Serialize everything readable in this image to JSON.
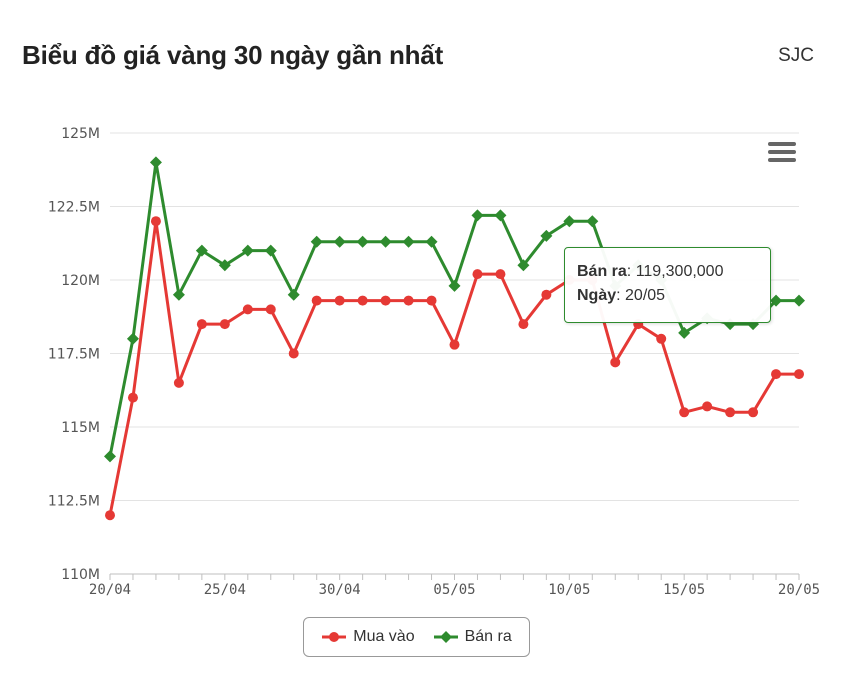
{
  "header": {
    "title": "Biểu đồ giá vàng 30 ngày gần nhất",
    "brand": "SJC"
  },
  "tooltip": {
    "label1": "Bán ra",
    "value1": "119,300,000",
    "label2": "Ngày",
    "value2": "20/05"
  },
  "chart_data": {
    "type": "line",
    "title": "Biểu đồ giá vàng 30 ngày gần nhất",
    "x": [
      "20/04",
      "21/04",
      "22/04",
      "23/04",
      "24/04",
      "25/04",
      "26/04",
      "27/04",
      "28/04",
      "29/04",
      "30/04",
      "01/05",
      "02/05",
      "03/05",
      "04/05",
      "05/05",
      "06/05",
      "07/05",
      "08/05",
      "09/05",
      "10/05",
      "11/05",
      "12/05",
      "13/05",
      "14/05",
      "15/05",
      "16/05",
      "17/05",
      "18/05",
      "19/05",
      "20/05"
    ],
    "xticks": [
      "20/04",
      "25/04",
      "30/04",
      "05/05",
      "10/05",
      "15/05",
      "20/05"
    ],
    "yticks": [
      "110M",
      "112.5M",
      "115M",
      "117.5M",
      "120M",
      "122.5M",
      "125M"
    ],
    "ylim": [
      110,
      125
    ],
    "grid": true,
    "legend": "bottom",
    "series": [
      {
        "name": "Mua vào",
        "color": "#e53935",
        "marker": "circle",
        "values": [
          112.0,
          116.0,
          122.0,
          116.5,
          118.5,
          118.5,
          119.0,
          119.0,
          117.5,
          119.3,
          119.3,
          119.3,
          119.3,
          119.3,
          119.3,
          117.8,
          120.2,
          120.2,
          118.5,
          119.5,
          120.0,
          120.0,
          117.2,
          118.5,
          118.0,
          115.5,
          115.7,
          115.5,
          115.5,
          116.8,
          116.8
        ]
      },
      {
        "name": "Bán ra",
        "color": "#2e8b2e",
        "marker": "diamond",
        "values": [
          114.0,
          118.0,
          124.0,
          119.5,
          121.0,
          120.5,
          121.0,
          121.0,
          119.5,
          121.3,
          121.3,
          121.3,
          121.3,
          121.3,
          121.3,
          119.8,
          122.2,
          122.2,
          120.5,
          121.5,
          122.0,
          122.0,
          119.8,
          120.5,
          120.0,
          118.2,
          118.7,
          118.5,
          118.5,
          119.3,
          119.3
        ]
      }
    ]
  }
}
